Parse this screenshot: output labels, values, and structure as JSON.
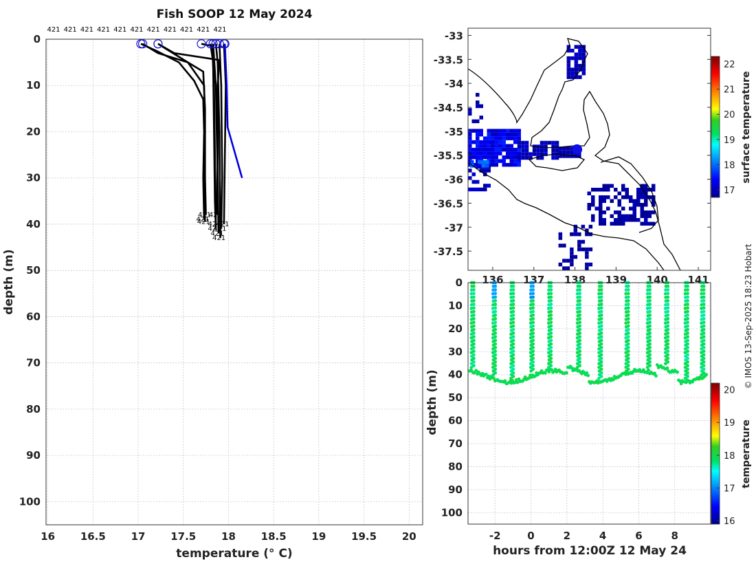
{
  "title": "Fish SOOP 12 May 2024",
  "credit": "© IMOS 13-Sep-2025 18:23 Hobart",
  "chart_data": [
    {
      "type": "line",
      "name": "profiles",
      "title": "Fish SOOP 12 May 2024",
      "xlabel": "temperature (° C)",
      "ylabel": "depth (m)",
      "xlim": [
        15.98,
        20.15
      ],
      "ylim": [
        105,
        0
      ],
      "xticks": [
        "16",
        "16.5",
        "17",
        "17.5",
        "18",
        "18.5",
        "19",
        "19.5",
        "20"
      ],
      "yticks": [
        "0",
        "10",
        "20",
        "30",
        "40",
        "50",
        "60",
        "70",
        "80",
        "90",
        "100"
      ],
      "vessel_labels": [
        "421",
        "421",
        "421",
        "421",
        "421",
        "421",
        "421",
        "421",
        "421",
        "421",
        "421"
      ],
      "profile_end_label": "421",
      "series": [
        {
          "name": "profile-1",
          "color": "#000000",
          "points": [
            [
              17.03,
              1
            ],
            [
              17.2,
              2.5
            ],
            [
              17.45,
              5
            ],
            [
              17.62,
              9
            ],
            [
              17.72,
              13
            ],
            [
              17.73,
              20
            ],
            [
              17.72,
              30
            ],
            [
              17.73,
              39
            ]
          ]
        },
        {
          "name": "profile-2",
          "color": "#000000",
          "points": [
            [
              17.05,
              1
            ],
            [
              17.22,
              3
            ],
            [
              17.55,
              5
            ],
            [
              17.72,
              7
            ],
            [
              17.74,
              15
            ],
            [
              17.74,
              30
            ],
            [
              17.75,
              38
            ]
          ]
        },
        {
          "name": "profile-3",
          "color": "#000000",
          "points": [
            [
              17.22,
              1
            ],
            [
              17.3,
              2
            ],
            [
              17.55,
              5
            ],
            [
              17.73,
              10
            ],
            [
              17.74,
              20
            ],
            [
              17.73,
              30
            ],
            [
              17.74,
              39.5
            ]
          ]
        },
        {
          "name": "profile-4",
          "color": "#000000",
          "points": [
            [
              17.22,
              1
            ],
            [
              17.4,
              3
            ],
            [
              17.9,
              4.5
            ],
            [
              17.88,
              10
            ],
            [
              17.88,
              25
            ],
            [
              17.87,
              38
            ]
          ]
        },
        {
          "name": "profile-5",
          "color": "#000000",
          "points": [
            [
              17.7,
              1
            ],
            [
              17.82,
              1.5
            ],
            [
              17.84,
              10
            ],
            [
              17.85,
              25
            ],
            [
              17.86,
              40
            ]
          ]
        },
        {
          "name": "profile-6",
          "color": "#000000",
          "points": [
            [
              17.8,
              1
            ],
            [
              17.83,
              5
            ],
            [
              17.84,
              20
            ],
            [
              17.85,
              35
            ],
            [
              17.86,
              41
            ]
          ]
        },
        {
          "name": "profile-7",
          "color": "#000000",
          "points": [
            [
              17.83,
              1
            ],
            [
              17.86,
              10
            ],
            [
              17.88,
              30
            ],
            [
              17.89,
              42
            ]
          ]
        },
        {
          "name": "profile-8",
          "color": "#000000",
          "points": [
            [
              17.86,
              1
            ],
            [
              17.88,
              5
            ],
            [
              17.9,
              20
            ],
            [
              17.91,
              43
            ]
          ]
        },
        {
          "name": "profile-9",
          "color": "#000000",
          "points": [
            [
              17.9,
              1
            ],
            [
              17.92,
              10
            ],
            [
              17.93,
              30
            ],
            [
              17.92,
              41
            ]
          ]
        },
        {
          "name": "profile-10",
          "color": "#000000",
          "points": [
            [
              17.95,
              1
            ],
            [
              17.97,
              10
            ],
            [
              17.96,
              25
            ],
            [
              17.95,
              40
            ]
          ]
        },
        {
          "name": "profile-11",
          "color": "#0000dd",
          "points": [
            [
              17.96,
              1
            ],
            [
              17.98,
              10
            ],
            [
              17.99,
              19
            ],
            [
              18.15,
              30
            ]
          ]
        }
      ]
    },
    {
      "type": "heatmap",
      "name": "map",
      "yticks": [
        "-33",
        "-33.5",
        "-34",
        "-34.5",
        "-35",
        "-35.5",
        "-36",
        "-36.5",
        "-37",
        "-37.5"
      ],
      "xticks": [
        "136",
        "137",
        "138",
        "139",
        "140",
        "141"
      ],
      "vessel_position": [
        138.05,
        -35.38
      ],
      "colorbar": {
        "label": "surface temperature",
        "ticks": [
          "22",
          "21",
          "20",
          "19",
          "18",
          "17"
        ],
        "range": [
          16.7,
          22.3
        ]
      }
    },
    {
      "type": "scatter",
      "name": "time-depth",
      "xlabel": "hours from 12:00Z 12 May 24",
      "ylabel": "depth (m)",
      "xlim": [
        -3.5,
        10
      ],
      "ylim": [
        105,
        0
      ],
      "xticks": [
        "-2",
        "0",
        "2",
        "4",
        "6",
        "8"
      ],
      "yticks": [
        "0",
        "10",
        "20",
        "30",
        "40",
        "50",
        "60",
        "70",
        "80",
        "90",
        "100"
      ],
      "casts": [
        -3.3,
        -2.1,
        -1.1,
        0.0,
        1.0,
        2.6,
        3.8,
        5.3,
        6.5,
        7.5,
        8.6,
        9.5
      ],
      "colorbar": {
        "label": "temperature",
        "ticks": [
          "20",
          "19",
          "18",
          "17",
          "16"
        ],
        "range": [
          15.9,
          20.2
        ]
      }
    }
  ]
}
